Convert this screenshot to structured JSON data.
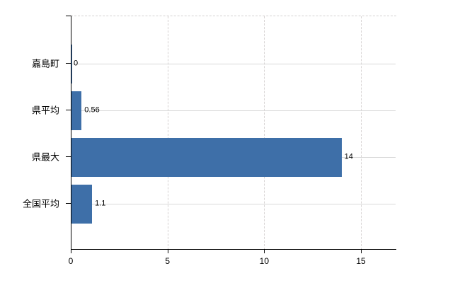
{
  "page": {
    "background_color": "#ffffff"
  },
  "chart_data": {
    "type": "bar",
    "orientation": "horizontal",
    "title": "",
    "categories": [
      "嘉島町",
      "県平均",
      "県最大",
      "全国平均"
    ],
    "values": [
      0,
      0.56,
      14,
      1.1
    ],
    "value_labels": [
      "0",
      "0.56",
      "14",
      "1.1"
    ],
    "x_ticks": [
      0,
      5,
      10,
      15
    ],
    "xlim": [
      0,
      16.8
    ],
    "grid": "on",
    "legend": "none",
    "bar_color": "#3e6fa8",
    "grid_color": "#d9d9d9",
    "dashed_grid_color": "#d4d0d0",
    "axis_color": "#000000",
    "text_color": "#000000"
  }
}
